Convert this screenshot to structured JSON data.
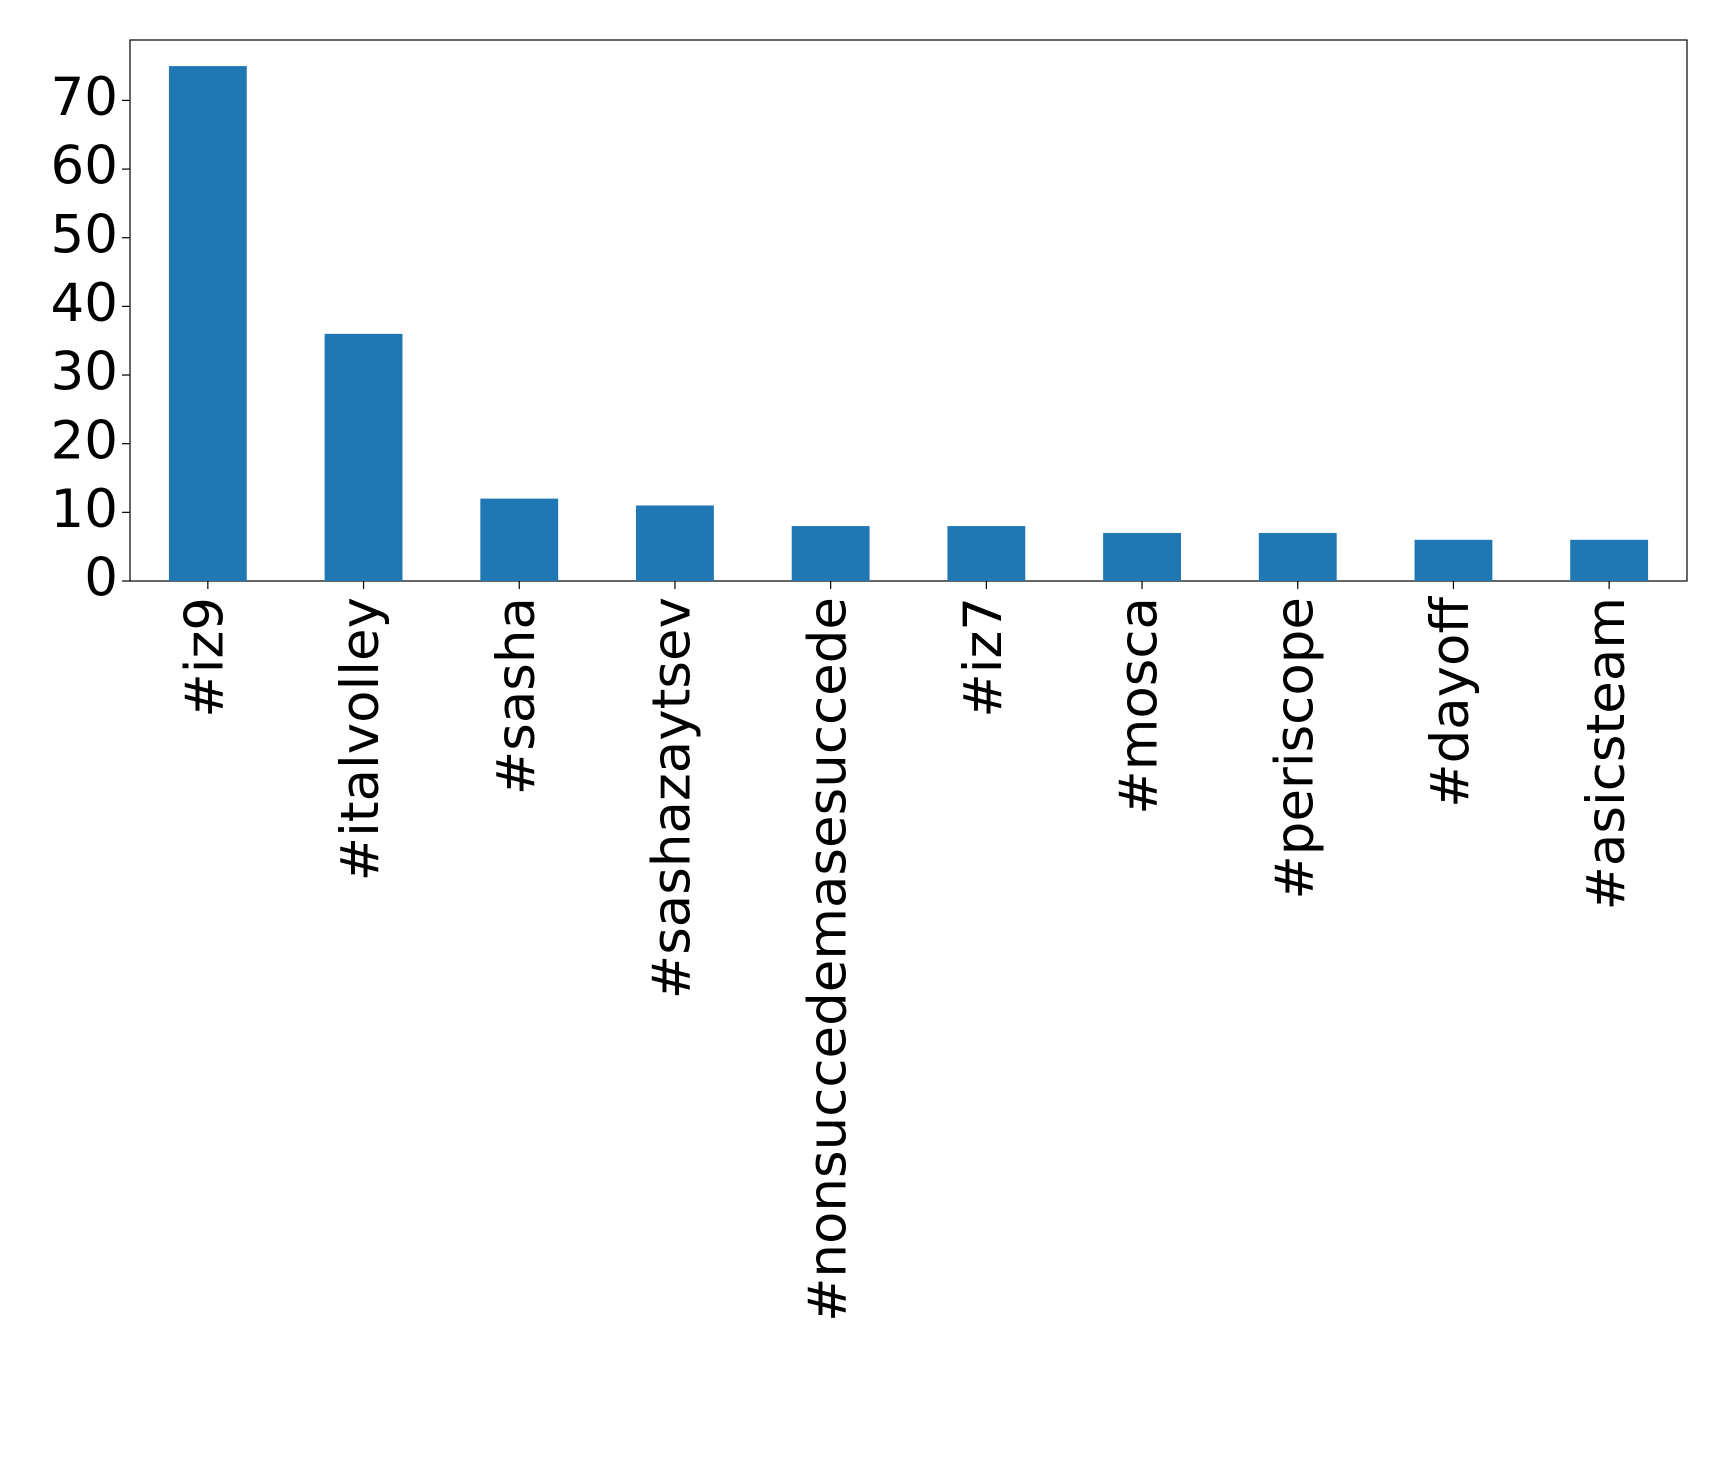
{
  "chart_data": {
    "type": "bar",
    "categories": [
      "#iz9",
      "#italvolley",
      "#sasha",
      "#sashazaytsev",
      "#nonsuccedemasesuccede",
      "#iz7",
      "#mosca",
      "#periscope",
      "#dayoff",
      "#asicsteam"
    ],
    "values": [
      75,
      36,
      12,
      11,
      8,
      8,
      7,
      7,
      6,
      6
    ],
    "color": "#1f77b4",
    "ylim": [
      0,
      78.8
    ],
    "yticks": [
      0,
      10,
      20,
      30,
      40,
      50,
      60,
      70
    ],
    "grid": false
  }
}
